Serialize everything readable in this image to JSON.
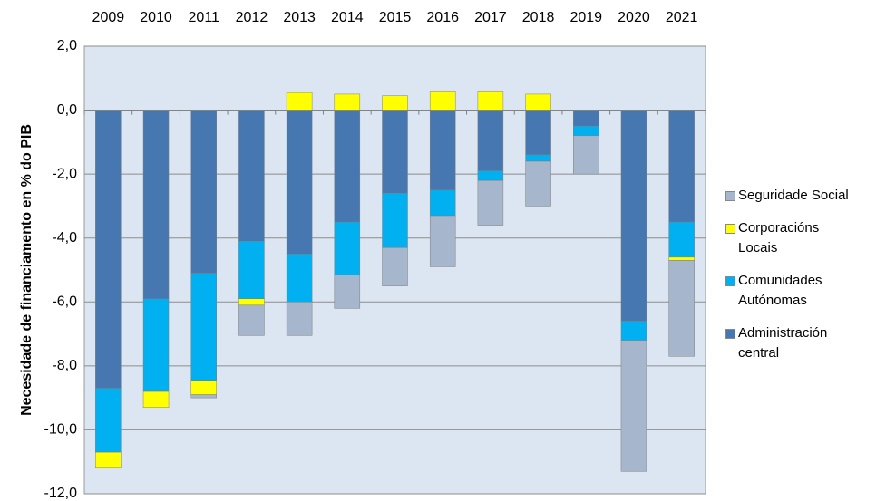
{
  "chart_data": {
    "type": "stacked-bar",
    "y_label": "Necesidade de financiamento en % do PIB",
    "categories": [
      "2009",
      "2010",
      "2011",
      "2012",
      "2013",
      "2014",
      "2015",
      "2016",
      "2017",
      "2018",
      "2019",
      "2020",
      "2021"
    ],
    "series": [
      {
        "name": "Administración central",
        "color": "#4677b0",
        "values": [
          -8.7,
          -5.9,
          -5.1,
          -4.1,
          -4.5,
          -3.5,
          -2.6,
          -2.5,
          -1.9,
          -1.4,
          -0.5,
          -6.6,
          -3.5
        ]
      },
      {
        "name": "Comunidades Autónomas",
        "color": "#00b0f0",
        "values": [
          -2.0,
          -2.9,
          -3.35,
          -1.8,
          -1.5,
          -1.65,
          -1.7,
          -0.8,
          -0.3,
          -0.2,
          -0.3,
          -0.6,
          -1.1
        ]
      },
      {
        "name": "Corporacións Locais",
        "color": "#ffff00",
        "values": [
          -0.5,
          -0.5,
          -0.45,
          -0.2,
          0.55,
          0.5,
          0.45,
          0.6,
          0.6,
          0.5,
          0,
          0,
          -0.1
        ]
      },
      {
        "name": "Seguridade Social",
        "color": "#a6b6cc",
        "values": [
          0,
          0,
          -0.1,
          -0.95,
          -1.05,
          -1.05,
          -1.2,
          -1.6,
          -1.4,
          -1.4,
          -1.2,
          -4.1,
          -3.0
        ]
      }
    ],
    "ylim": [
      -12,
      2
    ],
    "yticks": [
      {
        "value": -12,
        "label": "-12,0"
      },
      {
        "value": -10,
        "label": "-10,0"
      },
      {
        "value": -8,
        "label": "-8,0"
      },
      {
        "value": -6,
        "label": "-6,0"
      },
      {
        "value": -4,
        "label": "-4,0"
      },
      {
        "value": -2,
        "label": "-2,0"
      },
      {
        "value": 0,
        "label": "0,0"
      },
      {
        "value": 2,
        "label": "2,0"
      }
    ],
    "grid": true,
    "legend": "right"
  }
}
